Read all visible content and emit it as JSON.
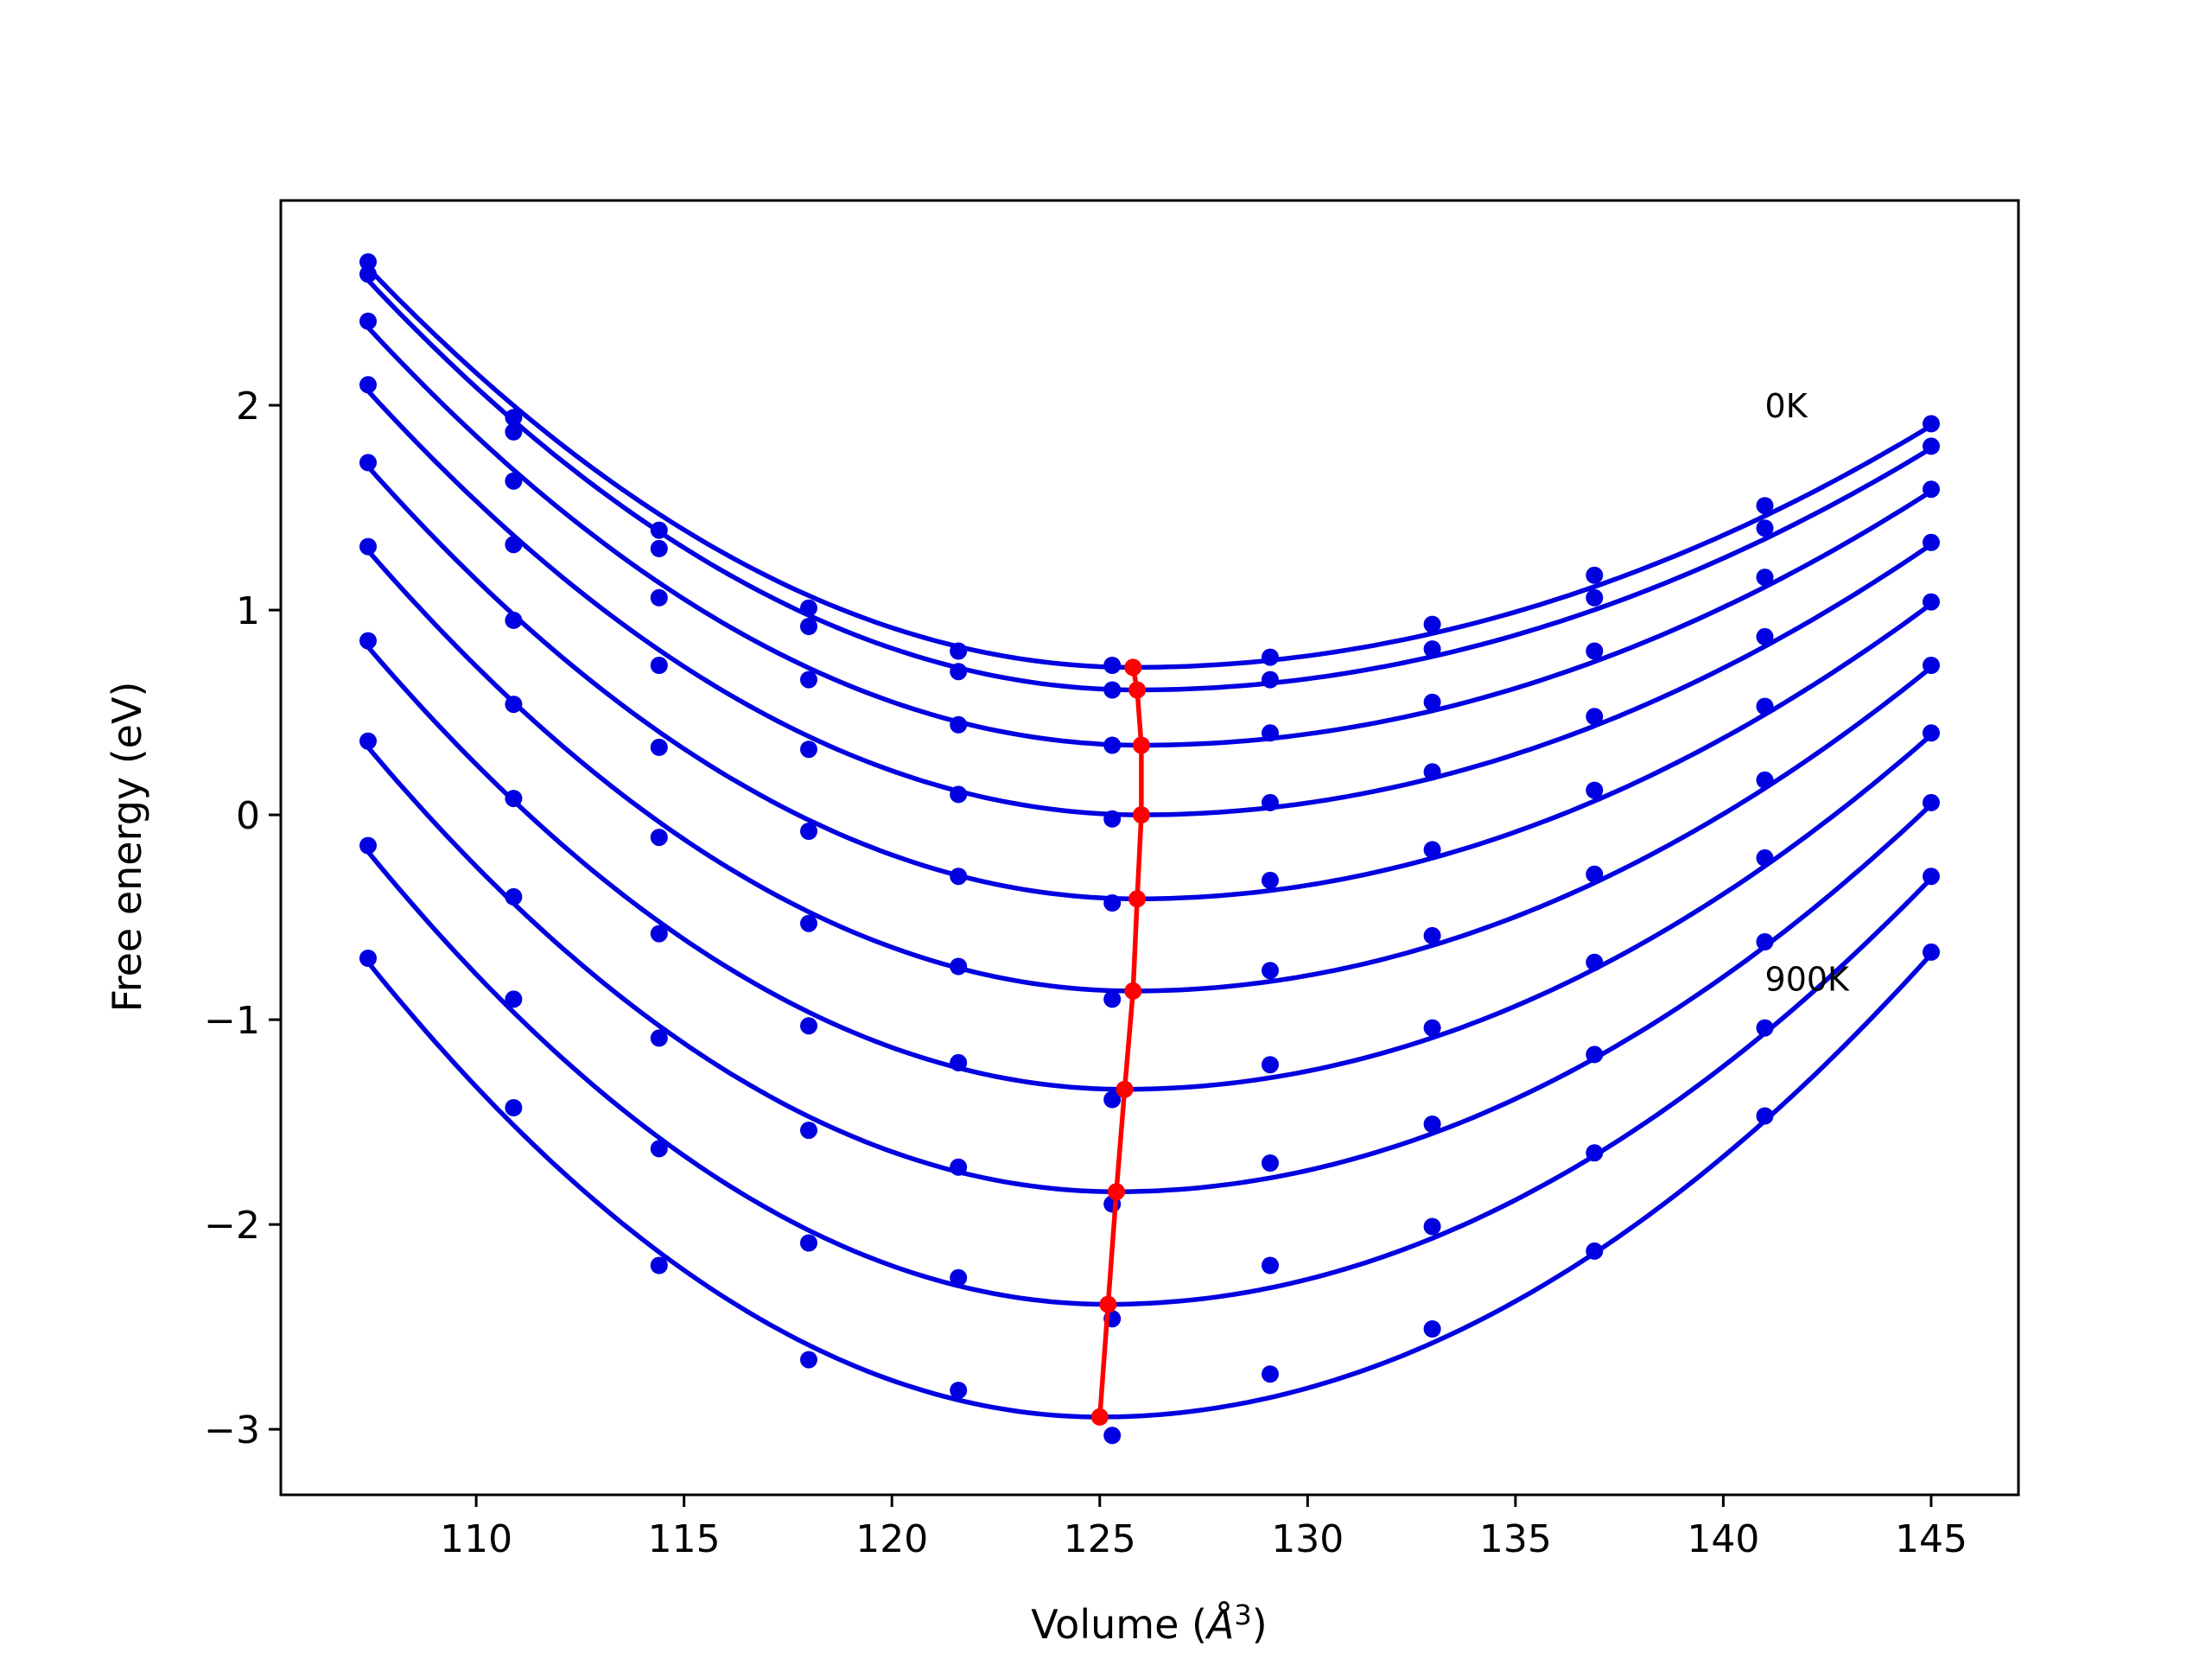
{
  "chart_data": {
    "type": "line",
    "title": "",
    "xlabel": "Volume (Å³)",
    "xlabel_parts": {
      "prefix": "Volume (",
      "unit": "Å",
      "sup": "3",
      "suffix": ")"
    },
    "ylabel": "Free energy (eV)",
    "xlim": [
      105.3,
      147.1
    ],
    "ylim": [
      -3.32,
      3.0
    ],
    "xticks": [
      110,
      115,
      120,
      125,
      130,
      135,
      140,
      145
    ],
    "xtick_labels": [
      "110",
      "115",
      "120",
      "125",
      "130",
      "135",
      "140",
      "145"
    ],
    "yticks": [
      -3,
      -2,
      -1,
      0,
      1,
      2
    ],
    "ytick_labels": [
      "−3",
      "−2",
      "−1",
      "0",
      "1",
      "2"
    ],
    "grid": false,
    "legend": "none",
    "colors": {
      "fit_curves": "#0000e0",
      "data_points": "#0000e0",
      "minimum_line": "#ff0000"
    },
    "annotations": [
      {
        "text": "0K",
        "x": 141.0,
        "y": 2.0
      },
      {
        "text": "900K",
        "x": 141.0,
        "y": -0.8
      }
    ],
    "volumes": [
      107.4,
      110.9,
      114.4,
      118.0,
      121.6,
      125.3,
      129.1,
      133.0,
      136.9,
      141.0,
      145.0
    ],
    "series": [
      {
        "values": [
          2.7,
          1.94,
          1.39,
          1.01,
          0.8,
          0.73,
          0.77,
          0.93,
          1.17,
          1.51,
          1.91
        ],
        "fit_min": {
          "x": 125.8,
          "y": 0.72
        },
        "fit_ends": [
          2.67,
          1.9
        ]
      },
      {
        "values": [
          2.64,
          1.87,
          1.3,
          0.92,
          0.7,
          0.61,
          0.66,
          0.81,
          1.06,
          1.4,
          1.8
        ],
        "fit_min": {
          "x": 125.9,
          "y": 0.61
        },
        "fit_ends": [
          2.61,
          1.79
        ]
      },
      {
        "values": [
          2.41,
          1.63,
          1.06,
          0.66,
          0.44,
          0.34,
          0.4,
          0.55,
          0.8,
          1.16,
          1.59
        ],
        "fit_min": {
          "x": 126.0,
          "y": 0.34
        },
        "fit_ends": [
          2.38,
          1.58
        ]
      },
      {
        "values": [
          2.1,
          1.32,
          0.73,
          0.32,
          0.1,
          -0.02,
          0.06,
          0.21,
          0.48,
          0.87,
          1.33
        ],
        "fit_min": {
          "x": 126.0,
          "y": 0.0
        },
        "fit_ends": [
          2.07,
          1.32
        ]
      },
      {
        "values": [
          1.72,
          0.95,
          0.33,
          -0.08,
          -0.3,
          -0.43,
          -0.32,
          -0.17,
          0.12,
          0.53,
          1.04
        ],
        "fit_min": {
          "x": 125.9,
          "y": -0.41
        },
        "fit_ends": [
          1.7,
          1.03
        ]
      },
      {
        "values": [
          1.31,
          0.54,
          -0.11,
          -0.53,
          -0.74,
          -0.9,
          -0.76,
          -0.59,
          -0.29,
          0.17,
          0.73
        ],
        "fit_min": {
          "x": 125.8,
          "y": -0.86
        },
        "fit_ends": [
          1.29,
          0.72
        ]
      },
      {
        "values": [
          0.85,
          0.08,
          -0.58,
          -1.03,
          -1.21,
          -1.39,
          -1.22,
          -1.04,
          -0.72,
          -0.21,
          0.4
        ],
        "fit_min": {
          "x": 125.6,
          "y": -1.34
        },
        "fit_ends": [
          0.82,
          0.39
        ]
      },
      {
        "values": [
          0.36,
          -0.4,
          -1.09,
          -1.54,
          -1.72,
          -1.9,
          -1.7,
          -1.51,
          -1.17,
          -0.62,
          0.06
        ],
        "fit_min": {
          "x": 125.4,
          "y": -1.84
        },
        "fit_ends": [
          0.33,
          0.05
        ]
      },
      {
        "values": [
          -0.15,
          -0.9,
          -1.63,
          -2.09,
          -2.26,
          -2.46,
          -2.2,
          -2.01,
          -1.65,
          -1.04,
          -0.3
        ],
        "fit_min": {
          "x": 125.2,
          "y": -2.39
        },
        "fit_ends": [
          -0.18,
          -0.31
        ]
      },
      {
        "values": [
          -0.7,
          -1.43,
          -2.2,
          -2.66,
          -2.81,
          -3.03,
          -2.73,
          -2.51,
          -2.13,
          -1.47,
          -0.67
        ],
        "fit_min": {
          "x": 125.0,
          "y": -2.94
        },
        "fit_ends": [
          -0.72,
          -0.68
        ]
      }
    ],
    "minimum_curve": {
      "x": [
        125.8,
        125.9,
        126.0,
        126.0,
        125.9,
        125.8,
        125.6,
        125.4,
        125.2,
        125.0
      ],
      "y": [
        0.72,
        0.61,
        0.34,
        0.0,
        -0.41,
        -0.86,
        -1.34,
        -1.84,
        -2.39,
        -2.94
      ]
    }
  }
}
